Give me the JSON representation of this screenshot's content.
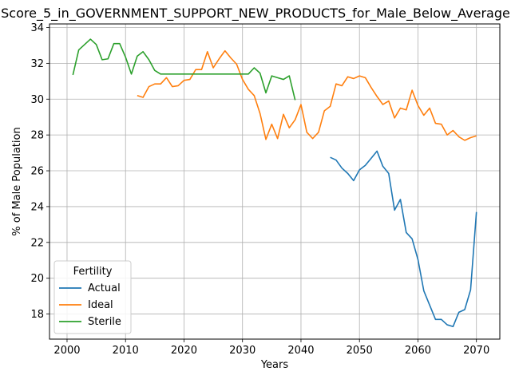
{
  "chart_data": {
    "type": "line",
    "title": "Score_5_in_GOVERNMENT_SUPPORT_NEW_PRODUCTS_for_Male_Below_Average",
    "xlabel": "Years",
    "ylabel": "% of Male Population",
    "xlim": [
      1997,
      2074
    ],
    "ylim": [
      16.6,
      34.2
    ],
    "xticks": [
      2000,
      2010,
      2020,
      2030,
      2040,
      2050,
      2060,
      2070
    ],
    "yticks": [
      18,
      20,
      22,
      24,
      26,
      28,
      30,
      32,
      34
    ],
    "grid": true,
    "legend": {
      "title": "Fertility",
      "placement": "lower-left"
    },
    "series": [
      {
        "name": "Actual",
        "color": "#1f77b4",
        "x": [
          2045,
          2046,
          2047,
          2048,
          2049,
          2050,
          2051,
          2052,
          2053,
          2054,
          2055,
          2056,
          2057,
          2058,
          2059,
          2060,
          2061,
          2062,
          2063,
          2064,
          2065,
          2066,
          2067,
          2068,
          2069,
          2070
        ],
        "values": [
          26.75,
          26.6,
          26.15,
          25.85,
          25.45,
          26.05,
          26.3,
          26.7,
          27.1,
          26.25,
          25.85,
          23.8,
          24.4,
          22.55,
          22.2,
          21.05,
          19.3,
          18.5,
          17.7,
          17.7,
          17.4,
          17.3,
          18.1,
          18.25,
          19.35,
          23.7
        ]
      },
      {
        "name": "Ideal",
        "color": "#ff7f0e",
        "x": [
          2012,
          2013,
          2014,
          2015,
          2016,
          2017,
          2018,
          2019,
          2020,
          2021,
          2022,
          2023,
          2024,
          2025,
          2026,
          2027,
          2028,
          2029,
          2030,
          2031,
          2032,
          2033,
          2034,
          2035,
          2036,
          2037,
          2038,
          2039,
          2040,
          2041,
          2042,
          2043,
          2044,
          2045,
          2046,
          2047,
          2048,
          2049,
          2050,
          2051,
          2052,
          2053,
          2054,
          2055,
          2056,
          2057,
          2058,
          2059,
          2060,
          2061,
          2062,
          2063,
          2064,
          2065,
          2066,
          2067,
          2068,
          2069,
          2070
        ],
        "values": [
          30.2,
          30.1,
          30.7,
          30.85,
          30.85,
          31.2,
          30.7,
          30.75,
          31.05,
          31.1,
          31.65,
          31.65,
          32.65,
          31.75,
          32.25,
          32.7,
          32.3,
          31.95,
          31.1,
          30.55,
          30.2,
          29.2,
          27.75,
          28.6,
          27.8,
          29.15,
          28.4,
          28.85,
          29.7,
          28.15,
          27.8,
          28.15,
          29.35,
          29.6,
          30.85,
          30.75,
          31.25,
          31.15,
          31.3,
          31.2,
          30.65,
          30.15,
          29.7,
          29.9,
          28.95,
          29.5,
          29.4,
          30.5,
          29.65,
          29.1,
          29.5,
          28.65,
          28.6,
          28.0,
          28.25,
          27.9,
          27.7,
          27.85,
          27.95
        ]
      },
      {
        "name": "Sterile",
        "color": "#2ca02c",
        "x": [
          2001,
          2002,
          2003,
          2004,
          2005,
          2006,
          2007,
          2008,
          2009,
          2010,
          2011,
          2012,
          2013,
          2014,
          2015,
          2016,
          2017,
          2018,
          2019,
          2020,
          2021,
          2022,
          2023,
          2024,
          2025,
          2026,
          2027,
          2028,
          2029,
          2030,
          2031,
          2032,
          2033,
          2034,
          2035,
          2036,
          2037,
          2038,
          2039
        ],
        "values": [
          31.35,
          32.75,
          33.05,
          33.35,
          33.05,
          32.2,
          32.25,
          33.1,
          33.1,
          32.35,
          31.4,
          32.4,
          32.65,
          32.2,
          31.6,
          31.4,
          31.4,
          31.4,
          31.4,
          31.4,
          31.4,
          31.4,
          31.4,
          31.4,
          31.4,
          31.4,
          31.4,
          31.4,
          31.4,
          31.4,
          31.4,
          31.75,
          31.45,
          30.35,
          31.3,
          31.2,
          31.1,
          31.3,
          29.95
        ]
      }
    ]
  }
}
